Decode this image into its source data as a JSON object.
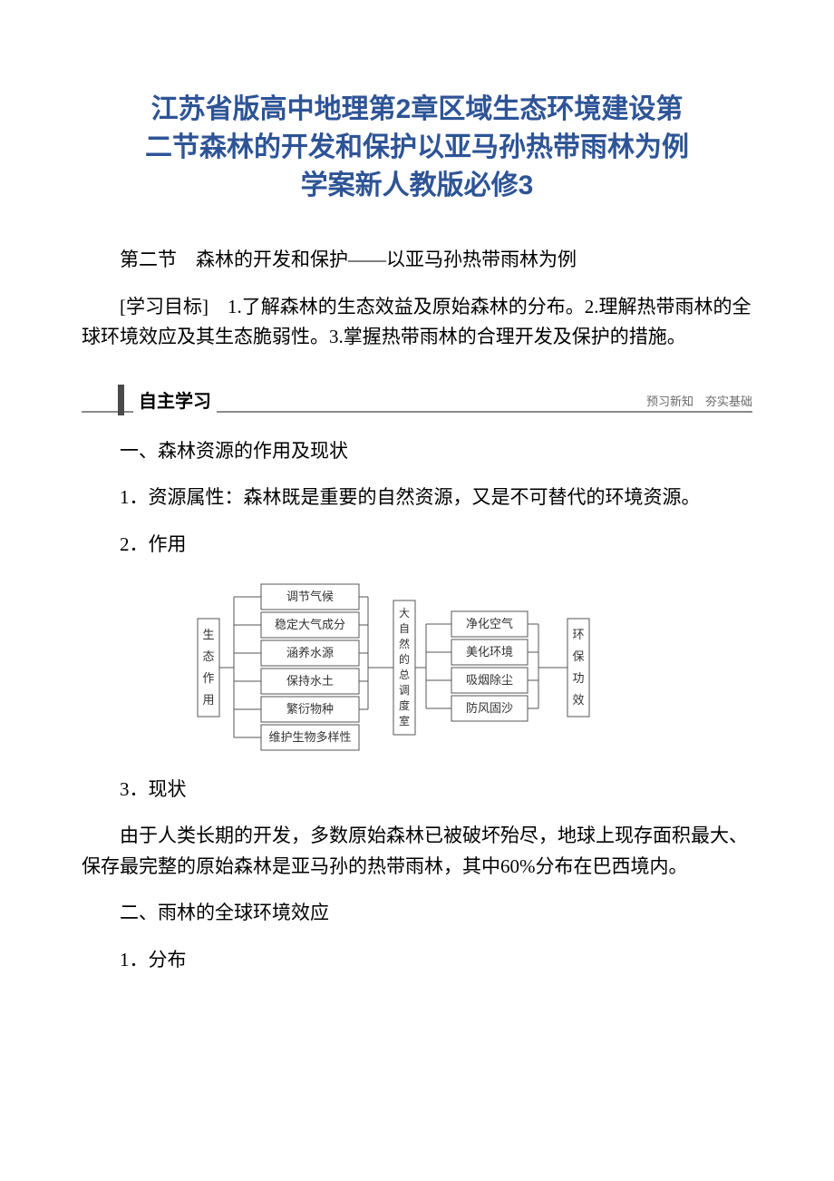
{
  "title_lines": [
    "江苏省版高中地理第2章区域生态环境建设第",
    "二节森林的开发和保护以亚马孙热带雨林为例",
    "学案新人教版必修3"
  ],
  "subtitle": "第二节　森林的开发和保护——以亚马孙热带雨林为例",
  "objectives": "[学习目标]　1.了解森林的生态效益及原始森林的分布。2.理解热带雨林的全球环境效应及其生态脆弱性。3.掌握热带雨林的合理开发及保护的措施。",
  "banner": {
    "left": "自主学习",
    "right": "预习新知　夯实基础",
    "bar_color": "#4a4a4a",
    "line_color": "#8a8a8a"
  },
  "sec1": {
    "h": "一、森林资源的作用及现状",
    "p1": "1．资源属性：森林既是重要的自然资源，又是不可替代的环境资源。",
    "p2": "2．作用",
    "p3": "3．现状",
    "p4": "由于人类长期的开发，多数原始森林已被破坏殆尽，地球上现存面积最大、保存最完整的原始森林是亚马孙的热带雨林，其中60%分布在巴西境内。"
  },
  "sec2": {
    "h": "二、雨林的全球环境效应",
    "p1": "1．分布"
  },
  "diagram": {
    "stroke": "#555555",
    "fill": "#ffffff",
    "font_size": 13,
    "left_label": "生态作用",
    "col1_items": [
      "调节气候",
      "稳定大气成分",
      "涵养水源",
      "保持水土",
      "繁衍物种",
      "维护生物多样性"
    ],
    "center_label": "大自然的总调度室",
    "col2_items": [
      "净化空气",
      "美化环境",
      "吸烟除尘",
      "防风固沙"
    ],
    "right_label": "环保功效",
    "colors": {
      "box_border": "#555555",
      "text": "#333333"
    }
  },
  "title_color": "#2e5496"
}
